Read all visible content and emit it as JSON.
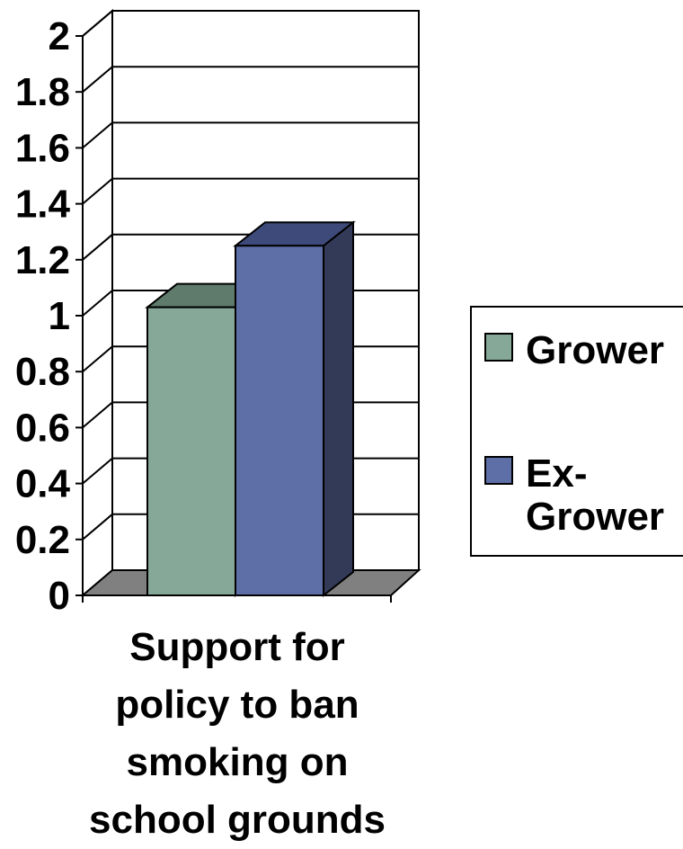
{
  "chart_data": {
    "type": "bar",
    "categories": [
      "Support for policy to ban smoking on school grounds"
    ],
    "category_lines": [
      "Support for",
      "policy to ban",
      "smoking on",
      "school grounds"
    ],
    "series": [
      {
        "name": "Grower",
        "values": [
          1.03
        ],
        "color": "#86a898",
        "top_color": "#5e7b6c"
      },
      {
        "name": "Ex-Grower",
        "legend_lines": [
          "Ex-",
          "Grower"
        ],
        "values": [
          1.25
        ],
        "color": "#5e6fa8",
        "top_color": "#3d4a7a",
        "side_color": "#323a58"
      }
    ],
    "yticks": [
      "0",
      "0.2",
      "0.4",
      "0.6",
      "0.8",
      "1",
      "1.2",
      "1.4",
      "1.6",
      "1.8",
      "2"
    ],
    "ylim": [
      0,
      2
    ],
    "grid": true,
    "three_d": true,
    "floor_color": "#808080",
    "legend_position": "right",
    "title": "",
    "xlabel": "",
    "ylabel": ""
  }
}
